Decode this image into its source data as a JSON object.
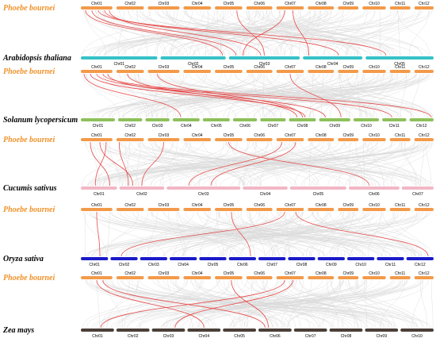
{
  "colors": {
    "reference": "#f39a4a",
    "background_links": "#d9d9d9",
    "highlight_links": "#e84a4a",
    "label_reference": "#f0922a",
    "label_target": "#000000"
  },
  "panels": [
    {
      "reference": {
        "name": "Phoebe bournei",
        "chromosomes": [
          "Chr01",
          "Chr02",
          "Chr03",
          "Chr04",
          "Chr05",
          "Chr06",
          "Chr07",
          "Chr08",
          "Chr09",
          "Chr10",
          "Chr11",
          "Chr12"
        ]
      },
      "target": {
        "name": "Arabidopsis thaliana",
        "color": "#36c2c7",
        "chromosomes": [
          "Chr01",
          "Chr02",
          "Chr03",
          "Chr04",
          "Chr05"
        ]
      }
    },
    {
      "reference": {
        "name": "Phoebe bournei",
        "chromosomes": [
          "Chr01",
          "Chr02",
          "Chr03",
          "Chr04",
          "Chr05",
          "Chr06",
          "Chr07",
          "Chr08",
          "Chr09",
          "Chr10",
          "Chr11",
          "Chr12"
        ]
      },
      "target": {
        "name": "Solanum lycopersicum",
        "color": "#8cc15a",
        "chromosomes": [
          "Chr01",
          "Chr02",
          "Chr03",
          "Chr04",
          "Chr05",
          "Chr06",
          "Chr07",
          "Chr08",
          "Chr09",
          "Chr10",
          "Chr11",
          "Chr12"
        ]
      }
    },
    {
      "reference": {
        "name": "Phoebe bournei",
        "chromosomes": [
          "Chr01",
          "Chr02",
          "Chr03",
          "Chr04",
          "Chr05",
          "Chr06",
          "Chr07",
          "Chr08",
          "Chr09",
          "Chr10",
          "Chr11",
          "Chr12"
        ]
      },
      "target": {
        "name": "Cucumis sativus",
        "color": "#f2b7c6",
        "chromosomes": [
          "Chr01",
          "Chr02",
          "Chr03",
          "Chr04",
          "Chr05",
          "Chr06",
          "Chr07"
        ]
      }
    },
    {
      "reference": {
        "name": "Phoebe bournei",
        "chromosomes": [
          "Chr01",
          "Chr02",
          "Chr03",
          "Chr04",
          "Chr05",
          "Chr06",
          "Chr07",
          "Chr08",
          "Chr09",
          "Chr10",
          "Chr11",
          "Chr12"
        ]
      },
      "target": {
        "name": "Oryza sativa",
        "color": "#1a1ac8",
        "chromosomes": [
          "Chr01",
          "Chr02",
          "Chr03",
          "Chr04",
          "Chr05",
          "Chr06",
          "Chr07",
          "Chr08",
          "Chr09",
          "Chr10",
          "Chr11",
          "Chr12"
        ]
      }
    },
    {
      "reference": {
        "name": "Phoebe bournei",
        "chromosomes": [
          "Chr01",
          "Chr02",
          "Chr03",
          "Chr04",
          "Chr05",
          "Chr06",
          "Chr07",
          "Chr08",
          "Chr09",
          "Chr10",
          "Chr11",
          "Chr12"
        ]
      },
      "target": {
        "name": "Zea mays",
        "color": "#4a3f38",
        "chromosomes": [
          "Chr01",
          "Chr02",
          "Chr03",
          "Chr04",
          "Chr05",
          "Chr06",
          "Chr07",
          "Chr08",
          "Chr09",
          "Chr10"
        ]
      }
    }
  ]
}
